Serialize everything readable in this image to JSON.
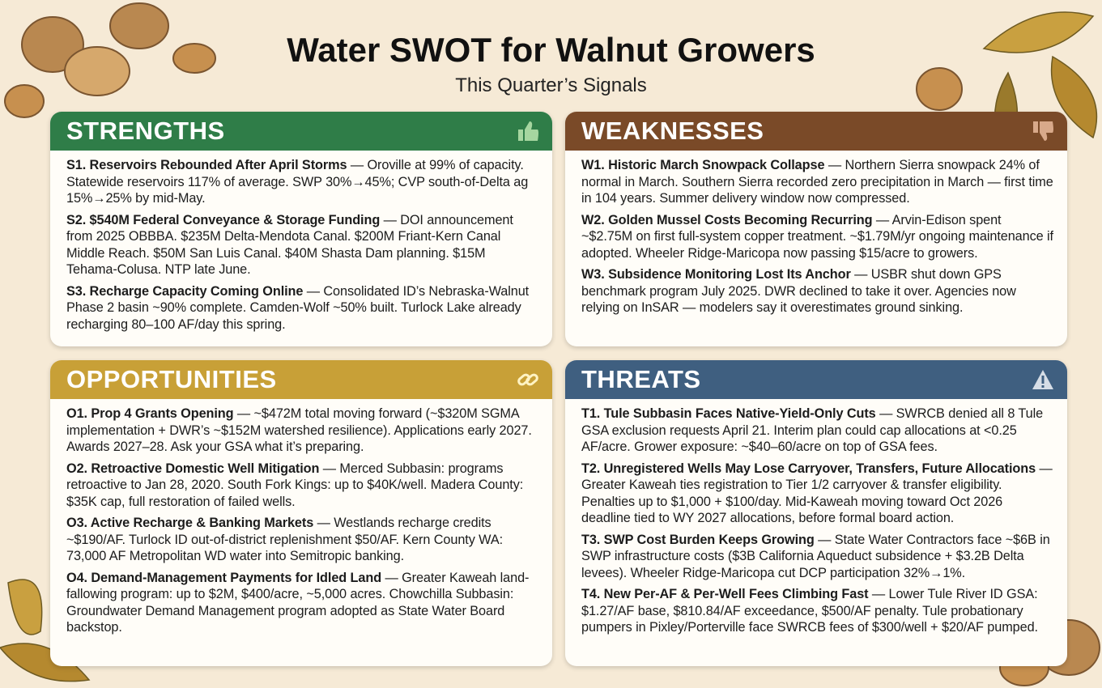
{
  "header": {
    "title": "Water SWOT for Walnut Growers",
    "subtitle": "This Quarter’s Signals"
  },
  "quadrants": [
    {
      "title": "STRENGTHS",
      "items": [
        {
          "heading": "S1. Reservoirs Rebounded After April Storms",
          "body": "— Oroville at 99% of capacity. Statewide reservoirs 117% of average. SWP 30%→45%; CVP south-of-Delta ag 15%→25% by mid-May."
        },
        {
          "heading": "S2. $540M Federal Conveyance & Storage Funding",
          "body": "— DOI announcement from 2025 OBBBA. $235M Delta-Mendota Canal. $200M Friant-Kern Canal Middle Reach. $50M San Luis Canal. $40M Shasta Dam planning. $15M Tehama-Colusa. NTP late June."
        },
        {
          "heading": "S3. Recharge Capacity Coming Online",
          "body": "— Consolidated ID’s Nebraska-Walnut Phase 2 basin ~90% complete. Camden-Wolf ~50% built. Turlock Lake already recharging 80–100 AF/day this spring."
        }
      ]
    },
    {
      "title": "WEAKNESSES",
      "items": [
        {
          "heading": "W1. Historic March Snowpack Collapse",
          "body": "— Northern Sierra snowpack 24% of normal in March. Southern Sierra recorded zero precipitation in March — first time in 104 years. Summer delivery window now compressed."
        },
        {
          "heading": "W2. Golden Mussel Costs Becoming Recurring",
          "body": "— Arvin-Edison spent ~$2.75M on first full-system copper treatment. ~$1.79M/yr ongoing maintenance if adopted. Wheeler Ridge-Maricopa now passing $15/acre to growers."
        },
        {
          "heading": "W3. Subsidence Monitoring Lost Its Anchor",
          "body": "— USBR shut down GPS benchmark program July 2025. DWR declined to take it over. Agencies now relying on InSAR — modelers say it overestimates ground sinking."
        }
      ]
    },
    {
      "title": "OPPORTUNITIES",
      "items": [
        {
          "heading": "O1. Prop 4 Grants Opening",
          "body": "— ~$472M total moving forward (~$320M SGMA implementation + DWR’s ~$152M watershed resilience). Applications early 2027. Awards 2027–28. Ask your GSA what it’s preparing."
        },
        {
          "heading": "O2. Retroactive Domestic Well Mitigation",
          "body": "— Merced Subbasin: programs retroactive to Jan 28, 2020. South Fork Kings: up to $40K/well. Madera County: $35K cap, full restoration of failed wells."
        },
        {
          "heading": "O3. Active Recharge & Banking Markets",
          "body": "— Westlands recharge credits ~$190/AF. Turlock ID out-of-district replenishment $50/AF. Kern County WA: 73,000 AF Metropolitan WD water into Semitropic banking."
        },
        {
          "heading": "O4. Demand-Management Payments for Idled Land",
          "body": "— Greater Kaweah land-fallowing program: up to $2M, $400/acre, ~5,000 acres. Chowchilla Subbasin: Groundwater Demand Management program adopted as State Water Board backstop."
        }
      ]
    },
    {
      "title": "THREATS",
      "items": [
        {
          "heading": "T1. Tule Subbasin Faces Native-Yield-Only Cuts",
          "body": "— SWRCB denied all 8 Tule GSA exclusion requests April 21. Interim plan could cap allocations at <0.25 AF/acre. Grower exposure: ~$40–60/acre on top of GSA fees."
        },
        {
          "heading": "T2. Unregistered Wells May Lose Carryover, Transfers, Future Allocations",
          "body": "— Greater Kaweah ties registration to Tier 1/2 carryover & transfer eligibility. Penalties up to $1,000 + $100/day. Mid-Kaweah moving toward Oct 2026 deadline tied to WY 2027 allocations, before formal board action."
        },
        {
          "heading": "T3. SWP Cost Burden Keeps Growing",
          "body": "— State Water Contractors face ~$6B in SWP infrastructure costs ($3B California Aqueduct subsidence + $3.2B Delta levees). Wheeler Ridge-Maricopa cut DCP participation 32%→1%."
        },
        {
          "heading": "T4. New Per-AF & Per-Well Fees Climbing Fast",
          "body": "— Lower Tule River ID GSA: $1.27/AF base, $810.84/AF exceedance, $500/AF penalty. Tule probationary pumpers in Pixley/Porterville face SWRCB fees of $300/well + $20/AF pumped."
        }
      ]
    }
  ]
}
